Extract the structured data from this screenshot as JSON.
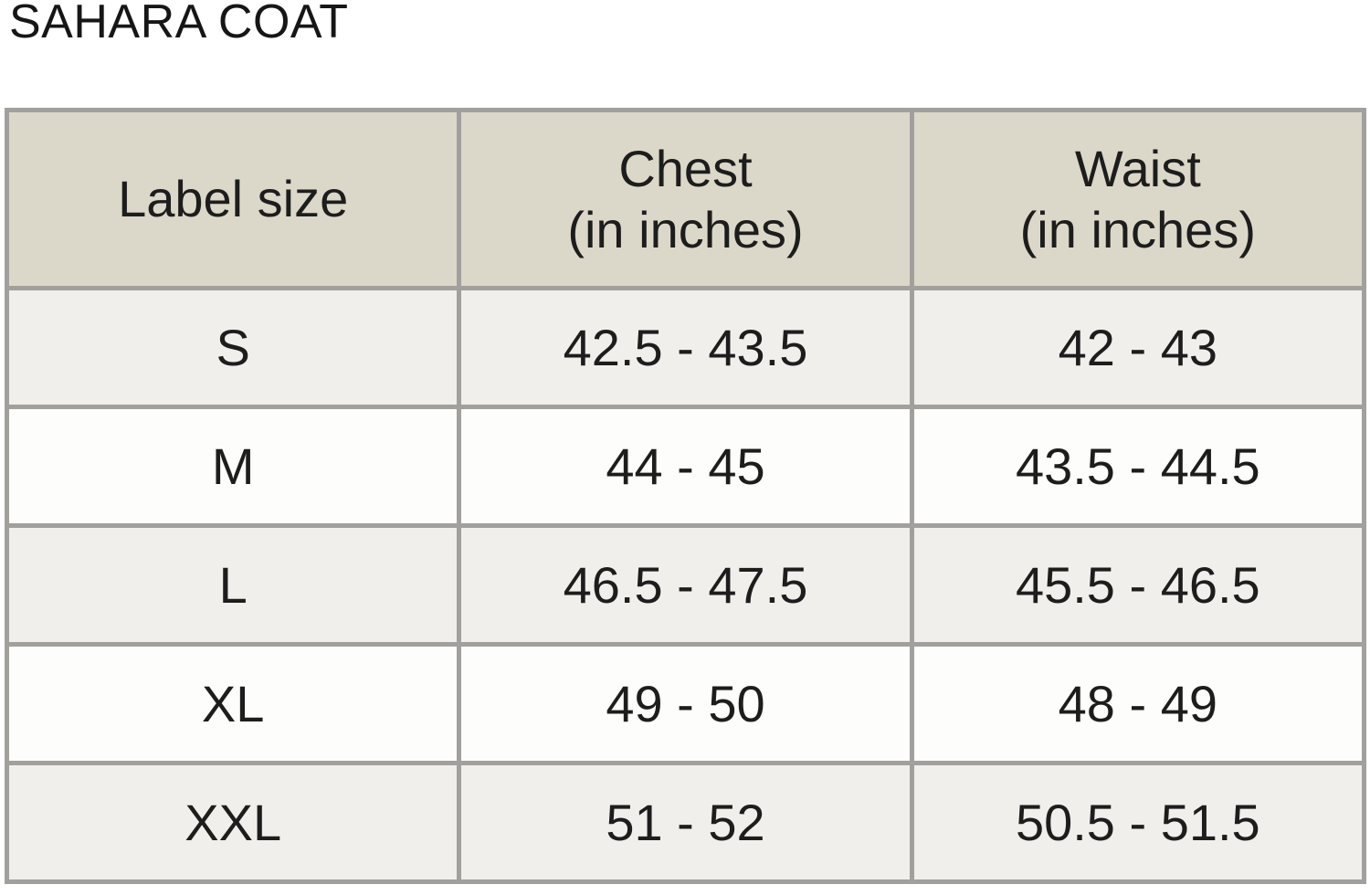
{
  "page_title": "SAHARA COAT",
  "colors": {
    "header_background": "#dcd8c9",
    "row_shaded_background": "#f0efec",
    "row_plain_background": "#fdfdfc",
    "border": "#a1a09d",
    "text": "#1d1d1d",
    "page_background": "#ffffff"
  },
  "size_table": {
    "headers": [
      {
        "title": "Label size",
        "subtitle": ""
      },
      {
        "title": "Chest",
        "subtitle": "(in inches)"
      },
      {
        "title": "Waist",
        "subtitle": "(in inches)"
      }
    ],
    "rows": [
      {
        "label": "S",
        "chest": "42.5 - 43.5",
        "waist": "42 - 43"
      },
      {
        "label": "M",
        "chest": "44 - 45",
        "waist": "43.5 - 44.5"
      },
      {
        "label": "L",
        "chest": "46.5 - 47.5",
        "waist": "45.5 - 46.5"
      },
      {
        "label": "XL",
        "chest": "49 - 50",
        "waist": "48 - 49"
      },
      {
        "label": "XXL",
        "chest": "51 - 52",
        "waist": "50.5 - 51.5"
      }
    ]
  },
  "chart_data": {
    "type": "table",
    "title": "SAHARA COAT",
    "columns": [
      "Label size",
      "Chest (in inches)",
      "Waist (in inches)"
    ],
    "rows": [
      [
        "S",
        "42.5 - 43.5",
        "42 - 43"
      ],
      [
        "M",
        "44 - 45",
        "43.5 - 44.5"
      ],
      [
        "L",
        "46.5 - 47.5",
        "45.5 - 46.5"
      ],
      [
        "XL",
        "49 - 50",
        "48 - 49"
      ],
      [
        "XXL",
        "51 - 52",
        "50.5 - 51.5"
      ]
    ]
  }
}
